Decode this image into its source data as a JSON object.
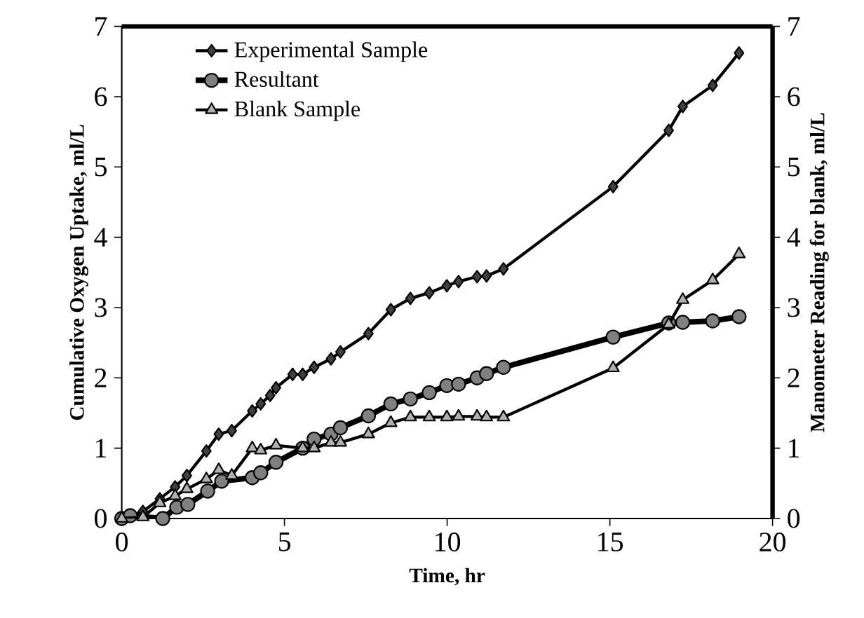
{
  "chart_data": {
    "type": "line",
    "xlabel": "Time, hr",
    "ylabel": "Cumulative Oxygen Uptake,  ml/L",
    "y2label": "Manometer Reading for blank, ml/L",
    "xlim": [
      0,
      20
    ],
    "xticks": [
      0,
      5,
      10,
      15,
      20
    ],
    "ylim": [
      0,
      7
    ],
    "yticks": [
      0,
      1,
      2,
      3,
      4,
      5,
      6,
      7
    ],
    "y2lim": [
      0,
      7
    ],
    "y2ticks": [
      0,
      1,
      2,
      3,
      4,
      5,
      6,
      7
    ],
    "legend": "top left",
    "grid": false,
    "series": [
      {
        "name": "Experimental Sample",
        "color": "#404040",
        "marker": "diamond",
        "x": [
          0,
          0.65,
          1.17,
          1.64,
          2.0,
          2.6,
          2.98,
          3.38,
          4.01,
          4.27,
          4.56,
          4.74,
          5.25,
          5.56,
          5.91,
          6.43,
          6.72,
          7.58,
          8.27,
          8.87,
          9.45,
          9.99,
          10.35,
          10.92,
          11.21,
          11.73,
          15.1,
          16.81,
          17.24,
          18.16,
          18.97
        ],
        "values": [
          0,
          0.1,
          0.28,
          0.45,
          0.61,
          0.96,
          1.2,
          1.25,
          1.53,
          1.63,
          1.75,
          1.86,
          2.05,
          2.05,
          2.15,
          2.27,
          2.37,
          2.63,
          2.97,
          3.13,
          3.21,
          3.31,
          3.37,
          3.44,
          3.45,
          3.55,
          4.72,
          5.52,
          5.86,
          6.16,
          6.62
        ]
      },
      {
        "name": "Resultant",
        "color": "#808080",
        "marker": "circle",
        "x": [
          0,
          0.26,
          1.26,
          1.69,
          2.03,
          2.64,
          3.07,
          4.01,
          4.27,
          4.74,
          5.56,
          5.91,
          6.43,
          6.72,
          7.58,
          8.27,
          8.87,
          9.45,
          9.99,
          10.35,
          10.92,
          11.21,
          11.73,
          15.1,
          16.81,
          17.24,
          18.16,
          18.97
        ],
        "values": [
          0,
          0.04,
          0,
          0.16,
          0.2,
          0.39,
          0.53,
          0.58,
          0.65,
          0.8,
          1.0,
          1.13,
          1.2,
          1.29,
          1.46,
          1.63,
          1.7,
          1.79,
          1.89,
          1.91,
          2.0,
          2.06,
          2.15,
          2.58,
          2.78,
          2.79,
          2.81,
          2.87
        ]
      },
      {
        "name": "Blank Sample",
        "color": "#b0b0b0",
        "marker": "triangle",
        "axis": "y2",
        "x": [
          0,
          0.65,
          1.17,
          1.64,
          2.0,
          2.6,
          2.98,
          3.38,
          4.01,
          4.27,
          4.74,
          5.56,
          5.91,
          6.43,
          6.72,
          7.58,
          8.27,
          8.87,
          9.45,
          9.99,
          10.35,
          10.92,
          11.21,
          11.73,
          15.1,
          16.81,
          17.24,
          18.16,
          18.97
        ],
        "values": [
          0,
          0.02,
          0.22,
          0.32,
          0.42,
          0.56,
          0.69,
          0.61,
          1.0,
          0.97,
          1.04,
          1.0,
          1.0,
          1.08,
          1.08,
          1.2,
          1.36,
          1.44,
          1.44,
          1.44,
          1.45,
          1.45,
          1.44,
          1.44,
          2.14,
          2.76,
          3.11,
          3.39,
          3.76
        ]
      }
    ]
  }
}
